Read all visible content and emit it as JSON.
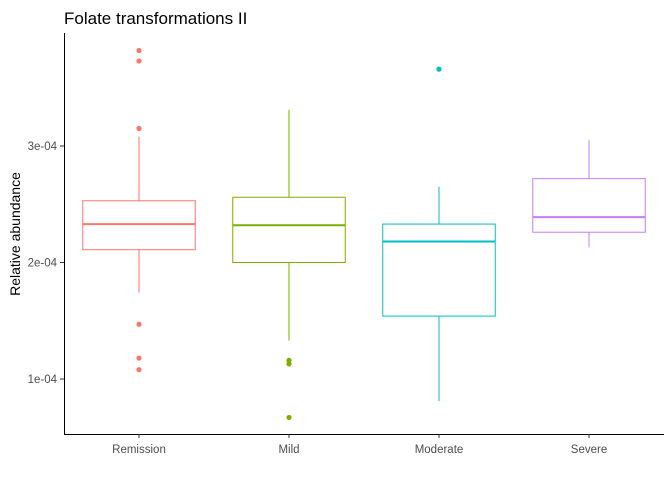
{
  "chart_data": {
    "type": "boxplot",
    "title": "Folate transformations II",
    "xlabel": "",
    "ylabel": "Relative abundance",
    "ylim": [
      5.28e-05,
      0.000397
    ],
    "yticks": [
      0.0001,
      0.0002,
      0.0003
    ],
    "ytick_labels": [
      "1e-04",
      "2e-04",
      "3e-04"
    ],
    "grid": false,
    "legend": "none",
    "categories": [
      "Remission",
      "Mild",
      "Moderate",
      "Severe"
    ],
    "colors": [
      "#F8766D",
      "#7CAE00",
      "#00BFC4",
      "#C77CFF"
    ],
    "boxes": [
      {
        "category": "Remission",
        "lower_whisker": 0.000174,
        "q1": 0.000211,
        "median": 0.000233,
        "q3": 0.000253,
        "upper_whisker": 0.000308,
        "outliers": [
          0.000382,
          0.000373,
          0.000315,
          0.000147,
          0.000118,
          0.000108
        ]
      },
      {
        "category": "Mild",
        "lower_whisker": 0.000133,
        "q1": 0.0002,
        "median": 0.000232,
        "q3": 0.000256,
        "upper_whisker": 0.000331,
        "outliers": [
          0.000116,
          0.000113,
          6.7e-05
        ]
      },
      {
        "category": "Moderate",
        "lower_whisker": 8.1e-05,
        "q1": 0.000154,
        "median": 0.000218,
        "q3": 0.000233,
        "upper_whisker": 0.000265,
        "outliers": [
          0.000366
        ]
      },
      {
        "category": "Severe",
        "lower_whisker": 0.000213,
        "q1": 0.000226,
        "median": 0.000239,
        "q3": 0.000272,
        "upper_whisker": 0.000305,
        "outliers": []
      }
    ]
  }
}
